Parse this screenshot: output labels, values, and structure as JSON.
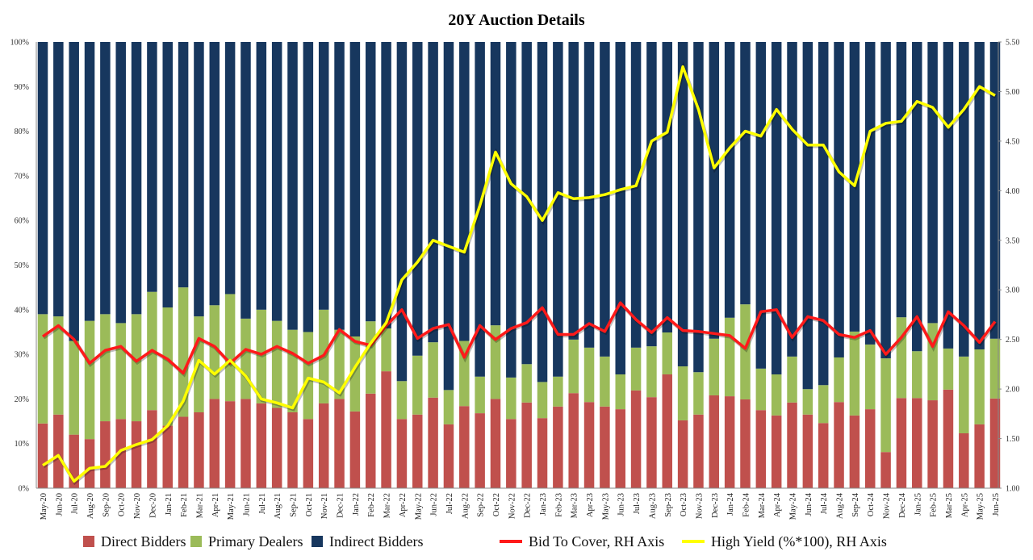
{
  "chart_data": {
    "type": "bar",
    "title": "20Y Auction Details",
    "stacked": true,
    "left_axis": {
      "ylim": [
        0,
        100
      ],
      "ticks": [
        "0%",
        "10%",
        "20%",
        "30%",
        "40%",
        "50%",
        "60%",
        "70%",
        "80%",
        "90%",
        "100%"
      ]
    },
    "right_axis": {
      "ylim": [
        1.0,
        5.5
      ],
      "ticks": [
        "1.00",
        "1.50",
        "2.00",
        "2.50",
        "3.00",
        "3.50",
        "4.00",
        "4.50",
        "5.00",
        "5.50"
      ]
    },
    "grid": false,
    "legend_position": "bottom",
    "categories": [
      "May-20",
      "Jun-20",
      "Jul-20",
      "Aug-20",
      "Sep-20",
      "Oct-20",
      "Nov-20",
      "Dec-20",
      "Jan-21",
      "Feb-21",
      "Mar-21",
      "Apr-21",
      "May-21",
      "Jun-21",
      "Jul-21",
      "Aug-21",
      "Sep-21",
      "Oct-21",
      "Nov-21",
      "Dec-21",
      "Jan-22",
      "Feb-22",
      "Mar-22",
      "Apr-22",
      "May-22",
      "Jun-22",
      "Jul-22",
      "Aug-22",
      "Sep-22",
      "Oct-22",
      "Nov-22",
      "Dec-22",
      "Jan-23",
      "Feb-23",
      "Mar-23",
      "Apr-23",
      "May-23",
      "Jun-23",
      "Jul-23",
      "Aug-23",
      "Sep-23",
      "Oct-23",
      "Nov-23",
      "Dec-23",
      "Jan-24",
      "Feb-24",
      "Mar-24",
      "Apr-24",
      "May-24",
      "Jun-24",
      "Jul-24",
      "Aug-24",
      "Sep-24",
      "Oct-24",
      "Nov-24",
      "Dec-24",
      "Jan-25",
      "Feb-25",
      "Mar-25",
      "Apr-25",
      "May-25",
      "Jun-25"
    ],
    "series": [
      {
        "name": "Direct Bidders",
        "type": "bar",
        "axis": "left",
        "color": "#c0504d",
        "values": [
          14.5,
          16.5,
          12,
          11,
          15,
          15.5,
          15,
          17.5,
          14,
          16,
          17,
          20,
          19.5,
          20,
          19,
          18,
          17,
          15.5,
          19,
          20,
          17.2,
          21.2,
          26.2,
          15.5,
          16.5,
          20.3,
          14.3,
          18.4,
          16.8,
          20,
          15.5,
          19.2,
          15.7,
          18.3,
          21.3,
          19.3,
          18.3,
          17.7,
          21.9,
          20.4,
          25.5,
          15.2,
          16.5,
          20.8,
          20.6,
          19.9,
          17.5,
          16.3,
          19.2,
          16.5,
          14.6,
          19.3,
          16.3,
          17.7,
          8.1,
          20.2,
          20.2,
          19.7,
          22.1,
          12.3,
          14.3,
          20.1
        ]
      },
      {
        "name": "Primary Dealers",
        "type": "bar",
        "axis": "left",
        "color": "#9bbb59",
        "values": [
          24.5,
          22,
          21,
          26.5,
          24,
          21.5,
          24,
          26.5,
          26.5,
          29,
          21.5,
          21,
          24,
          18,
          21,
          19.5,
          18.5,
          19.5,
          21,
          15.5,
          16.8,
          16.2,
          9.6,
          8.5,
          13.2,
          12.4,
          7.7,
          14.6,
          8.2,
          16.5,
          9.3,
          8.6,
          8.1,
          6.7,
          12,
          12.2,
          11.2,
          7.8,
          9.6,
          11.4,
          9.4,
          12.1,
          9.5,
          12.7,
          17.6,
          21.3,
          9.3,
          9.2,
          10.3,
          5.7,
          8.5,
          10,
          18.8,
          14.5,
          21,
          18.1,
          10.5,
          17.3,
          9.2,
          17.2,
          16.8,
          13.4
        ]
      },
      {
        "name": "Indirect Bidders",
        "type": "bar",
        "axis": "left",
        "color": "#17375e",
        "values": [
          61,
          61.5,
          67,
          62.5,
          61,
          63,
          61,
          56,
          59.5,
          55,
          61.5,
          59,
          56.5,
          62,
          60,
          62.5,
          64.5,
          65,
          60,
          64.5,
          66,
          62.6,
          64.2,
          76,
          70.3,
          67.3,
          78,
          67,
          75,
          63.5,
          75.2,
          72.2,
          76.2,
          75,
          66.7,
          68.5,
          70.5,
          74.5,
          68.5,
          68.2,
          65.1,
          72.7,
          74,
          66.5,
          61.8,
          58.8,
          73.2,
          74.5,
          70.5,
          77.8,
          76.9,
          70.7,
          64.9,
          67.8,
          70.9,
          61.7,
          69.3,
          63,
          68.7,
          70.5,
          68.9,
          66.5
        ]
      },
      {
        "name": "Bid To Cover, RH Axis",
        "type": "line",
        "axis": "right",
        "color": "#ff1a1a",
        "values": [
          2.53,
          2.64,
          2.5,
          2.26,
          2.39,
          2.43,
          2.28,
          2.39,
          2.3,
          2.16,
          2.51,
          2.43,
          2.26,
          2.4,
          2.35,
          2.43,
          2.36,
          2.26,
          2.34,
          2.6,
          2.48,
          2.44,
          2.64,
          2.8,
          2.51,
          2.61,
          2.65,
          2.32,
          2.64,
          2.5,
          2.61,
          2.67,
          2.82,
          2.55,
          2.55,
          2.66,
          2.58,
          2.87,
          2.7,
          2.57,
          2.72,
          2.59,
          2.58,
          2.56,
          2.54,
          2.41,
          2.78,
          2.8,
          2.52,
          2.73,
          2.69,
          2.55,
          2.52,
          2.59,
          2.35,
          2.52,
          2.73,
          2.43,
          2.78,
          2.64,
          2.47,
          2.68
        ]
      },
      {
        "name": "High Yield (%*100), RH Axis",
        "type": "line",
        "axis": "right",
        "color": "#ffff00",
        "values": [
          1.23,
          1.33,
          1.07,
          1.2,
          1.22,
          1.38,
          1.44,
          1.49,
          1.63,
          1.88,
          2.29,
          2.15,
          2.29,
          2.13,
          1.9,
          1.86,
          1.81,
          2.11,
          2.07,
          1.96,
          2.22,
          2.46,
          2.67,
          3.1,
          3.28,
          3.5,
          3.44,
          3.38,
          3.85,
          4.39,
          4.07,
          3.94,
          3.7,
          3.98,
          3.92,
          3.93,
          3.96,
          4.01,
          4.05,
          4.5,
          4.59,
          5.25,
          4.82,
          4.23,
          4.43,
          4.6,
          4.55,
          4.82,
          4.62,
          4.46,
          4.46,
          4.19,
          4.05,
          4.6,
          4.68,
          4.7,
          4.9,
          4.84,
          4.64,
          4.82,
          5.05,
          4.96
        ]
      }
    ]
  }
}
